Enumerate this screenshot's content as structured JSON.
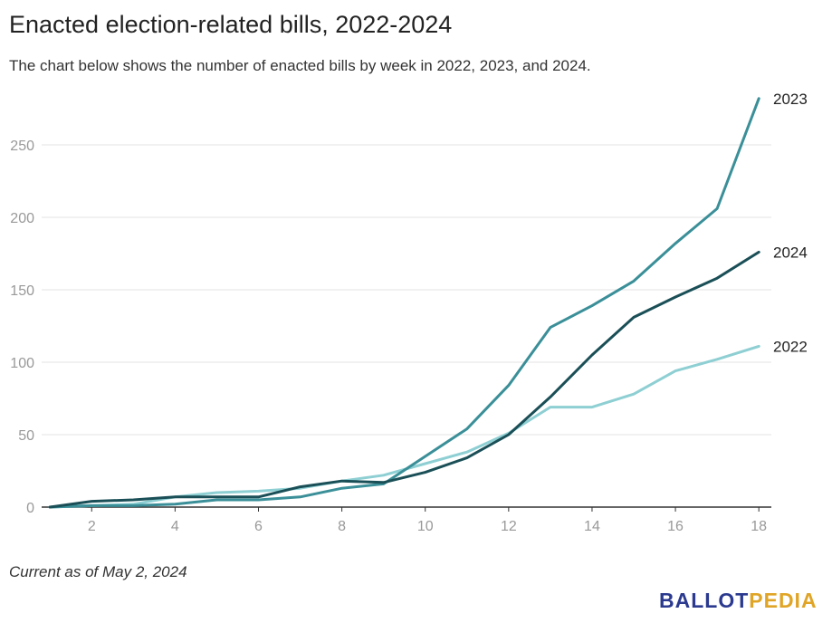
{
  "header": {
    "title": "Enacted election-related bills, 2022-2024",
    "subtitle": "The chart below shows the number of enacted bills by week in 2022, 2023, and 2024."
  },
  "footer": {
    "note": "Current as of May 2, 2024",
    "logo_part1": "BALLOT",
    "logo_part2": "PEDIA",
    "logo_colors": [
      "#2b3a8f",
      "#e0a526"
    ]
  },
  "chart_data": {
    "type": "line",
    "x": [
      1,
      2,
      3,
      4,
      5,
      6,
      7,
      8,
      9,
      10,
      11,
      12,
      13,
      14,
      15,
      16,
      17,
      18
    ],
    "xticks": [
      2,
      4,
      6,
      8,
      10,
      12,
      14,
      16,
      18
    ],
    "yticks": [
      0,
      50,
      100,
      150,
      200,
      250
    ],
    "xlim": [
      0.8,
      18.3
    ],
    "ylim": [
      0,
      285
    ],
    "grid": true,
    "legend": "inline-right",
    "series": [
      {
        "name": "2022",
        "color": "#8ecfd3",
        "values": [
          0,
          1,
          2,
          7,
          10,
          11,
          13,
          18,
          22,
          30,
          38,
          51,
          69,
          69,
          78,
          94,
          102,
          111
        ]
      },
      {
        "name": "2023",
        "color": "#3a8f98",
        "values": [
          0,
          1,
          1,
          2,
          5,
          5,
          7,
          13,
          16,
          35,
          54,
          84,
          124,
          139,
          156,
          182,
          206,
          282
        ]
      },
      {
        "name": "2024",
        "color": "#1a4f57",
        "values": [
          0,
          4,
          5,
          7,
          7,
          7,
          14,
          18,
          17,
          24,
          34,
          50,
          76,
          105,
          131,
          145,
          158,
          176
        ]
      }
    ]
  }
}
